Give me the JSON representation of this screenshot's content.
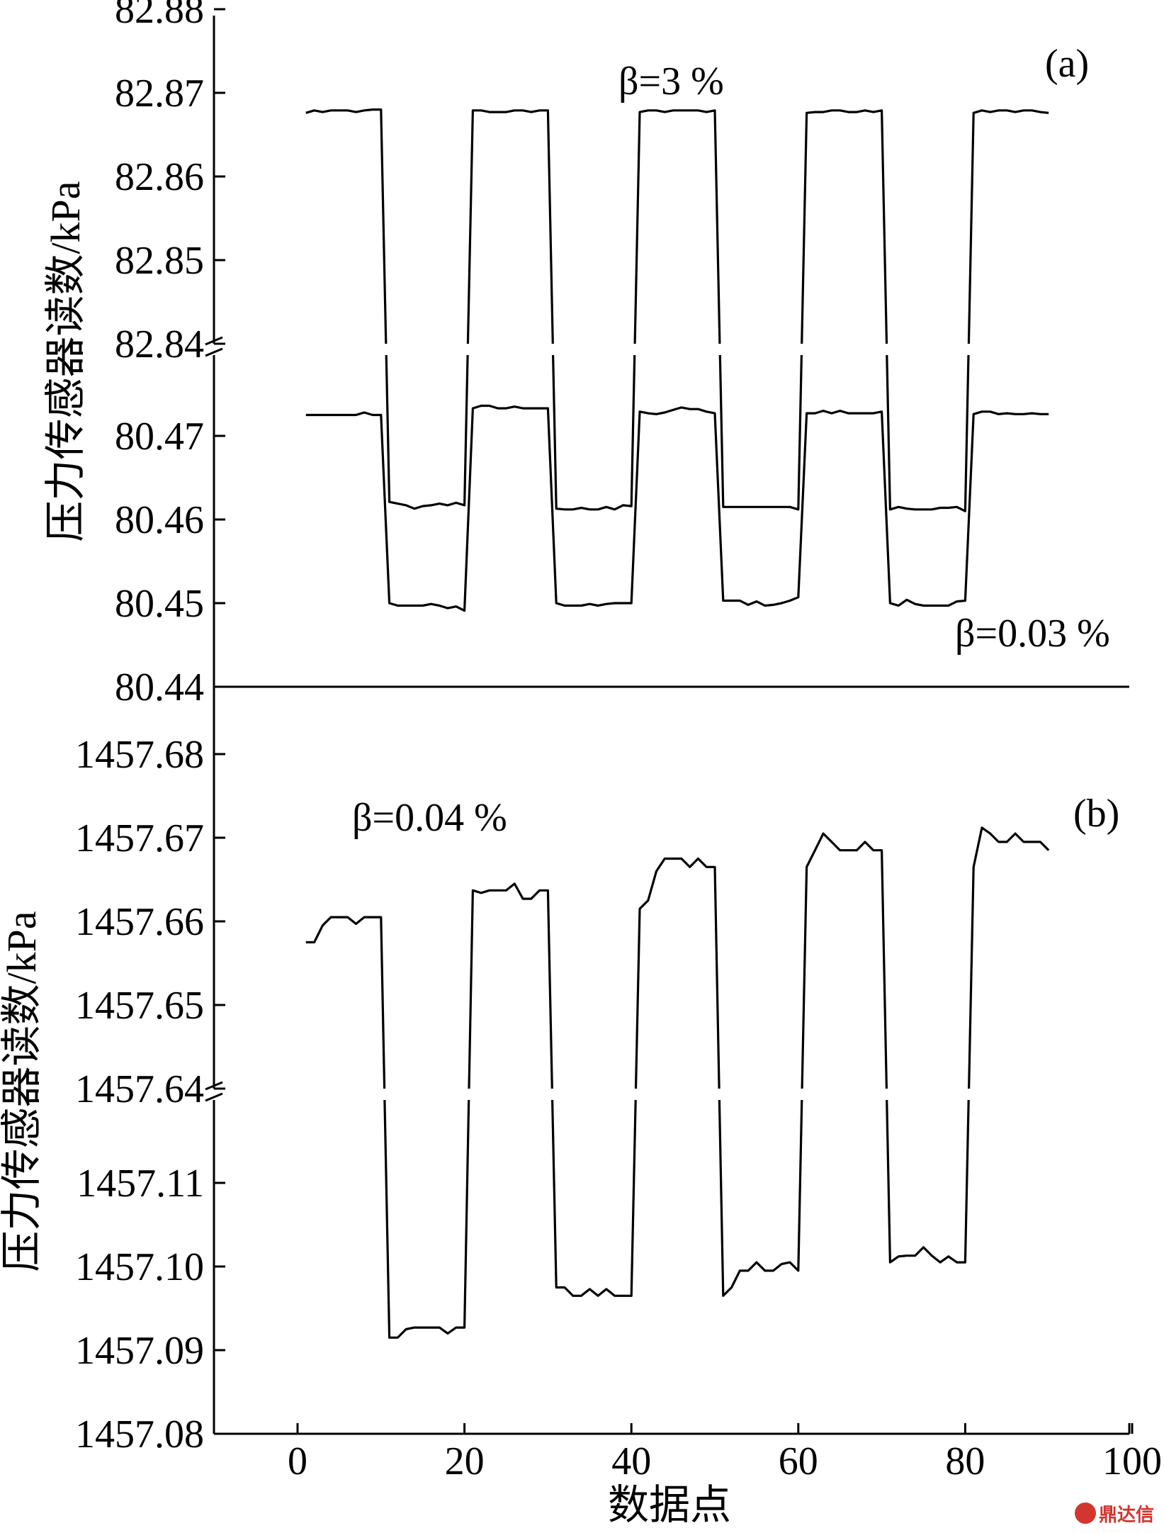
{
  "chart_data": [
    {
      "type": "line",
      "panel_label": "(a)",
      "ylabel": "压力传感器读数/kPa",
      "xlabel": "",
      "xlim": [
        -10,
        100
      ],
      "grid": false,
      "broken_y_axis": true,
      "y_segments": [
        {
          "name": "upper",
          "ylim": [
            82.84,
            82.88
          ],
          "ticks": [
            "82.84",
            "82.85",
            "82.86",
            "82.87",
            "82.88"
          ]
        },
        {
          "name": "lower",
          "ylim": [
            80.44,
            80.48
          ],
          "ticks": [
            "80.44",
            "80.45",
            "80.46",
            "80.47"
          ]
        }
      ],
      "annotations": [
        {
          "text": "β=3 %",
          "near": "upper series"
        },
        {
          "text": "β=0.03 %",
          "near": "lower series"
        }
      ],
      "series": [
        {
          "segment": "upper",
          "note": "β=3 %",
          "x": [
            1,
            2,
            3,
            4,
            5,
            6,
            7,
            8,
            9,
            10,
            11,
            12,
            13,
            14,
            15,
            16,
            17,
            18,
            19,
            20,
            21,
            22,
            23,
            24,
            25,
            26,
            27,
            28,
            29,
            30,
            31,
            32,
            33,
            34,
            35,
            36,
            37,
            38,
            39,
            40,
            41,
            42,
            43,
            44,
            45,
            46,
            47,
            48,
            49,
            50,
            51,
            52,
            53,
            54,
            55,
            56,
            57,
            58,
            59,
            60,
            61,
            62,
            63,
            64,
            65,
            66,
            67,
            68,
            69,
            70,
            71,
            72,
            73,
            74,
            75,
            76,
            77,
            78,
            79,
            80,
            81,
            82,
            83,
            84,
            85,
            86,
            87,
            88,
            89,
            90
          ],
          "values": [
            82.8676,
            82.8679,
            82.8677,
            82.8679,
            82.8679,
            82.8679,
            82.8677,
            82.8679,
            82.868,
            82.868,
            80.4621,
            80.4619,
            80.4617,
            80.4613,
            80.4616,
            80.4617,
            80.4619,
            80.4617,
            80.462,
            80.4617,
            82.8679,
            82.8679,
            82.8677,
            82.8677,
            82.8677,
            82.8679,
            82.8679,
            82.8677,
            82.8679,
            82.8679,
            80.4613,
            80.4612,
            80.4612,
            80.4614,
            80.4612,
            80.4612,
            80.4615,
            80.4612,
            80.4617,
            80.4616,
            82.8677,
            82.8679,
            82.8679,
            82.8677,
            82.8679,
            82.8679,
            82.8679,
            82.8679,
            82.8677,
            82.8679,
            80.4615,
            80.4615,
            80.4615,
            80.4615,
            80.4615,
            80.4615,
            80.4615,
            80.4615,
            80.4615,
            80.4612,
            82.8676,
            82.8677,
            82.8677,
            82.8679,
            82.8679,
            82.8677,
            82.8677,
            82.8679,
            82.8677,
            82.8679,
            80.4612,
            80.4615,
            80.4613,
            80.4612,
            80.4612,
            80.4612,
            80.4614,
            80.4614,
            80.4615,
            80.461,
            82.8676,
            82.8679,
            82.8677,
            82.8679,
            82.8679,
            82.8677,
            82.8679,
            82.8679,
            82.8677,
            82.8676
          ]
        },
        {
          "segment": "lower",
          "note": "β=0.03 %",
          "x": [
            1,
            2,
            3,
            4,
            5,
            6,
            7,
            8,
            9,
            10,
            11,
            12,
            13,
            14,
            15,
            16,
            17,
            18,
            19,
            20,
            21,
            22,
            23,
            24,
            25,
            26,
            27,
            28,
            29,
            30,
            31,
            32,
            33,
            34,
            35,
            36,
            37,
            38,
            39,
            40,
            41,
            42,
            43,
            44,
            45,
            46,
            47,
            48,
            49,
            50,
            51,
            52,
            53,
            54,
            55,
            56,
            57,
            58,
            59,
            60,
            61,
            62,
            63,
            64,
            65,
            66,
            67,
            68,
            69,
            70,
            71,
            72,
            73,
            74,
            75,
            76,
            77,
            78,
            79,
            80,
            81,
            82,
            83,
            84,
            85,
            86,
            87,
            88,
            89,
            90
          ],
          "values": [
            80.4725,
            80.4725,
            80.4725,
            80.4725,
            80.4725,
            80.4725,
            80.4725,
            80.4728,
            80.4725,
            80.4725,
            80.45,
            80.4497,
            80.4497,
            80.4497,
            80.4497,
            80.4499,
            80.4497,
            80.4494,
            80.4496,
            80.4491,
            80.4733,
            80.4736,
            80.4736,
            80.4733,
            80.4733,
            80.4735,
            80.4733,
            80.4733,
            80.4733,
            80.4733,
            80.45,
            80.4497,
            80.4497,
            80.4497,
            80.4499,
            80.4497,
            80.4499,
            80.45,
            80.45,
            80.45,
            80.4729,
            80.4727,
            80.4726,
            80.4728,
            80.4731,
            80.4734,
            80.4732,
            80.4732,
            80.4729,
            80.4727,
            80.4503,
            80.4503,
            80.4503,
            80.4498,
            80.4502,
            80.4497,
            80.4498,
            80.45,
            80.4503,
            80.4507,
            80.4727,
            80.4727,
            80.473,
            80.4727,
            80.473,
            80.4727,
            80.4727,
            80.4727,
            80.4727,
            80.4729,
            80.45,
            80.4497,
            80.4504,
            80.4499,
            80.4497,
            80.4497,
            80.4497,
            80.4497,
            80.4502,
            80.4503,
            80.4726,
            80.4729,
            80.4729,
            80.4726,
            80.4727,
            80.4726,
            80.4726,
            80.4727,
            80.4726,
            80.4726
          ]
        }
      ]
    },
    {
      "type": "line",
      "panel_label": "(b)",
      "ylabel": "压力传感器读数/kPa",
      "xlabel": "数据点",
      "xlim": [
        -10,
        100
      ],
      "xticks": [
        "0",
        "20",
        "40",
        "60",
        "80",
        "100"
      ],
      "grid": false,
      "broken_y_axis": true,
      "y_segments": [
        {
          "name": "upper",
          "ylim": [
            1457.64,
            1457.68
          ],
          "ticks": [
            "1457.64",
            "1457.65",
            "1457.66",
            "1457.67",
            "1457.68"
          ]
        },
        {
          "name": "lower",
          "ylim": [
            1457.08,
            1457.12
          ],
          "ticks": [
            "1457.08",
            "1457.09",
            "1457.10",
            "1457.11"
          ]
        }
      ],
      "annotations": [
        {
          "text": "β=0.04 %",
          "near": "series"
        }
      ],
      "series": [
        {
          "note": "β=0.04 %",
          "x": [
            1,
            2,
            3,
            4,
            5,
            6,
            7,
            8,
            9,
            10,
            11,
            12,
            13,
            14,
            15,
            16,
            17,
            18,
            19,
            20,
            21,
            22,
            23,
            24,
            25,
            26,
            27,
            28,
            29,
            30,
            31,
            32,
            33,
            34,
            35,
            36,
            37,
            38,
            39,
            40,
            41,
            42,
            43,
            44,
            45,
            46,
            47,
            48,
            49,
            50,
            51,
            52,
            53,
            54,
            55,
            56,
            57,
            58,
            59,
            60,
            61,
            62,
            63,
            64,
            65,
            66,
            67,
            68,
            69,
            70,
            71,
            72,
            73,
            74,
            75,
            76,
            77,
            78,
            79,
            80,
            81,
            82,
            83,
            84,
            85,
            86,
            87,
            88,
            89,
            90
          ],
          "y_segment": [
            "upper",
            "upper",
            "upper",
            "upper",
            "upper",
            "upper",
            "upper",
            "upper",
            "upper",
            "upper",
            "lower",
            "lower",
            "lower",
            "lower",
            "lower",
            "lower",
            "lower",
            "lower",
            "lower",
            "lower",
            "upper",
            "upper",
            "upper",
            "upper",
            "upper",
            "upper",
            "upper",
            "upper",
            "upper",
            "upper",
            "lower",
            "lower",
            "lower",
            "lower",
            "lower",
            "lower",
            "lower",
            "lower",
            "lower",
            "lower",
            "upper",
            "upper",
            "upper",
            "upper",
            "upper",
            "upper",
            "upper",
            "upper",
            "upper",
            "upper",
            "lower",
            "lower",
            "lower",
            "lower",
            "lower",
            "lower",
            "lower",
            "lower",
            "lower",
            "lower",
            "upper",
            "upper",
            "upper",
            "upper",
            "upper",
            "upper",
            "upper",
            "upper",
            "upper",
            "upper",
            "lower",
            "lower",
            "lower",
            "lower",
            "lower",
            "lower",
            "lower",
            "lower",
            "lower",
            "lower",
            "upper",
            "upper",
            "upper",
            "upper",
            "upper",
            "upper",
            "upper",
            "upper",
            "upper",
            "upper"
          ],
          "values": [
            1457.6575,
            1457.6575,
            1457.6595,
            1457.6605,
            1457.6605,
            1457.6605,
            1457.6597,
            1457.6605,
            1457.6605,
            1457.6605,
            1457.0915,
            1457.0915,
            1457.0925,
            1457.0927,
            1457.0927,
            1457.0927,
            1457.0927,
            1457.092,
            1457.0927,
            1457.0927,
            1457.6637,
            1457.6634,
            1457.6637,
            1457.6637,
            1457.6637,
            1457.6645,
            1457.6627,
            1457.6627,
            1457.6637,
            1457.6637,
            1457.0975,
            1457.0975,
            1457.0965,
            1457.0965,
            1457.0973,
            1457.0965,
            1457.0973,
            1457.0965,
            1457.0965,
            1457.0965,
            1457.6615,
            1457.6625,
            1457.666,
            1457.6675,
            1457.6675,
            1457.6675,
            1457.6665,
            1457.6675,
            1457.6665,
            1457.6665,
            1457.0965,
            1457.0975,
            1457.0995,
            1457.0995,
            1457.1005,
            1457.0995,
            1457.0995,
            1457.1003,
            1457.1005,
            1457.0995,
            1457.6665,
            1457.6685,
            1457.6705,
            1457.6695,
            1457.6685,
            1457.6685,
            1457.6685,
            1457.6695,
            1457.6685,
            1457.6685,
            1457.1005,
            1457.1012,
            1457.1013,
            1457.1013,
            1457.1023,
            1457.1013,
            1457.1005,
            1457.1012,
            1457.1005,
            1457.1005,
            1457.6665,
            1457.6712,
            1457.6705,
            1457.6695,
            1457.6695,
            1457.6705,
            1457.6695,
            1457.6695,
            1457.6695,
            1457.6685
          ]
        }
      ]
    }
  ],
  "watermark": {
    "text": "鼎达信"
  }
}
